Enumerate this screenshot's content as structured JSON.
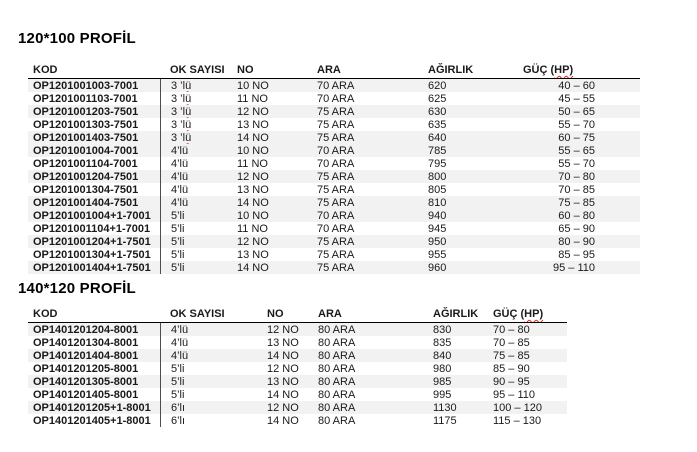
{
  "colors": {
    "stripe": "#f2f2f2",
    "header_rule": "#000000",
    "column_divider": "#4d4d4d",
    "spellcheck_underline": "#dd2b1c",
    "text": "#1a1a1a",
    "background": "#ffffff"
  },
  "tables": [
    {
      "title": "120*100 PROFİL",
      "headers": [
        {
          "label": "KOD"
        },
        {
          "label": "OK SAYISI"
        },
        {
          "label": "NO"
        },
        {
          "label": "ARA"
        },
        {
          "label": "AĞIRLIK"
        },
        {
          "pre": "GÜÇ (",
          "spell": "HP)"
        }
      ],
      "rows": [
        {
          "kod": "OP1201001003-7001",
          "ok_pre": "3 ’",
          "ok_spell": "lü",
          "no": "10 NO",
          "ara": "70 ARA",
          "agirlik": "620",
          "guc": "40 – 60",
          "shaded": true
        },
        {
          "kod": "OP1201001103-7001",
          "ok_pre": "3 ’",
          "ok_spell": "lü",
          "no": "11 NO",
          "ara": "70 ARA",
          "agirlik": "625",
          "guc": "45 – 55",
          "shaded": false
        },
        {
          "kod": "OP1201001203-7501",
          "ok_pre": "3 ’",
          "ok_spell": "lü",
          "no": "12 NO",
          "ara": "75 ARA",
          "agirlik": "630",
          "guc": "50 – 65",
          "shaded": true
        },
        {
          "kod": "OP1201001303-7501",
          "ok_pre": "3 ’",
          "ok_spell": "lü",
          "no": "13 NO",
          "ara": "75 ARA",
          "agirlik": "635",
          "guc": "55 – 70",
          "shaded": false
        },
        {
          "kod": "OP1201001403-7501",
          "ok_pre": "3 ’",
          "ok_spell": "lü",
          "no": "14 NO",
          "ara": "75 ARA",
          "agirlik": "640",
          "guc": "60 – 75",
          "shaded": true
        },
        {
          "kod": "OP1201001004-7001",
          "ok": "4’lü",
          "no": "10 NO",
          "ara": "70 ARA",
          "agirlik": "785",
          "guc": "55 – 65",
          "shaded": true
        },
        {
          "kod": "OP1201001104-7001",
          "ok": "4’lü",
          "no": "11 NO",
          "ara": "70 ARA",
          "agirlik": "795",
          "guc": "55 – 70",
          "shaded": false
        },
        {
          "kod": "OP1201001204-7501",
          "ok": "4’lü",
          "no": "12 NO",
          "ara": "75 ARA",
          "agirlik": "800",
          "guc": "70 – 80",
          "shaded": true
        },
        {
          "kod": "OP1201001304-7501",
          "ok": "4’lü",
          "no": "13 NO",
          "ara": "75 ARA",
          "agirlik": "805",
          "guc": "70 – 85",
          "shaded": false
        },
        {
          "kod": "OP1201001404-7501",
          "ok": "4’lü",
          "no": "14 NO",
          "ara": "75 ARA",
          "agirlik": "810",
          "guc": "75 – 85",
          "shaded": true
        },
        {
          "kod": "OP1201001004+1-7001",
          "ok": "5’li",
          "no": "10 NO",
          "ara": "70 ARA",
          "agirlik": "940",
          "guc": "60 – 80",
          "shaded": true
        },
        {
          "kod": "OP1201001104+1-7001",
          "ok": "5’li",
          "no": "11 NO",
          "ara": "70 ARA",
          "agirlik": "945",
          "guc": "65 – 90",
          "shaded": false
        },
        {
          "kod": "OP1201001204+1-7501",
          "ok": "5’li",
          "no": "12 NO",
          "ara": "75 ARA",
          "agirlik": "950",
          "guc": "80 – 90",
          "shaded": true
        },
        {
          "kod": "OP1201001304+1-7501",
          "ok": "5’li",
          "no": "13 NO",
          "ara": "75 ARA",
          "agirlik": "955",
          "guc": "85 – 95",
          "shaded": false
        },
        {
          "kod": "OP1201001404+1-7501",
          "ok": "5’li",
          "no": "14 NO",
          "ara": "75 ARA",
          "agirlik": "960",
          "guc": "95 – 110",
          "shaded": true
        }
      ]
    },
    {
      "title": "140*120 PROFİL",
      "headers": [
        {
          "label": "KOD"
        },
        {
          "label": "OK SAYISI"
        },
        {
          "label": "NO"
        },
        {
          "label": "ARA"
        },
        {
          "label": "AĞIRLIK"
        },
        {
          "pre": "GÜÇ (",
          "spell": "HP)"
        }
      ],
      "rows": [
        {
          "kod": "OP1401201204-8001",
          "ok": "4’lü",
          "no": "12 NO",
          "ara": "80 ARA",
          "agirlik": "830",
          "guc": "70 – 80",
          "shaded": true
        },
        {
          "kod": "OP1401201304-8001",
          "ok": "4’lü",
          "no": "13 NO",
          "ara": "80 ARA",
          "agirlik": "835",
          "guc": "70 – 85",
          "shaded": false
        },
        {
          "kod": "OP1401201404-8001",
          "ok": "4’lü",
          "no": "14 NO",
          "ara": "80 ARA",
          "agirlik": "840",
          "guc": "75 – 85",
          "shaded": true
        },
        {
          "kod": "OP1401201205-8001",
          "ok": "5’li",
          "no": "12 NO",
          "ara": "80 ARA",
          "agirlik": "980",
          "guc": "85 – 90",
          "shaded": false
        },
        {
          "kod": "OP1401201305-8001",
          "ok": "5’li",
          "no": "13 NO",
          "ara": "80 ARA",
          "agirlik": "985",
          "guc": "90 – 95",
          "shaded": true
        },
        {
          "kod": "OP1401201405-8001",
          "ok": "5’li",
          "no": "14 NO",
          "ara": "80 ARA",
          "agirlik": "995",
          "guc": "95 – 110",
          "shaded": false
        },
        {
          "kod": "OP1401201205+1-8001",
          "ok": "6’lı",
          "no": "12 NO",
          "ara": "80 ARA",
          "agirlik": "1130",
          "guc": "100 – 120",
          "shaded": true
        },
        {
          "kod": "OP1401201405+1-8001",
          "ok": "6’lı",
          "no": "14 NO",
          "ara": "80 ARA",
          "agirlik": "1175",
          "guc": "115 – 130",
          "shaded": false
        }
      ]
    }
  ]
}
